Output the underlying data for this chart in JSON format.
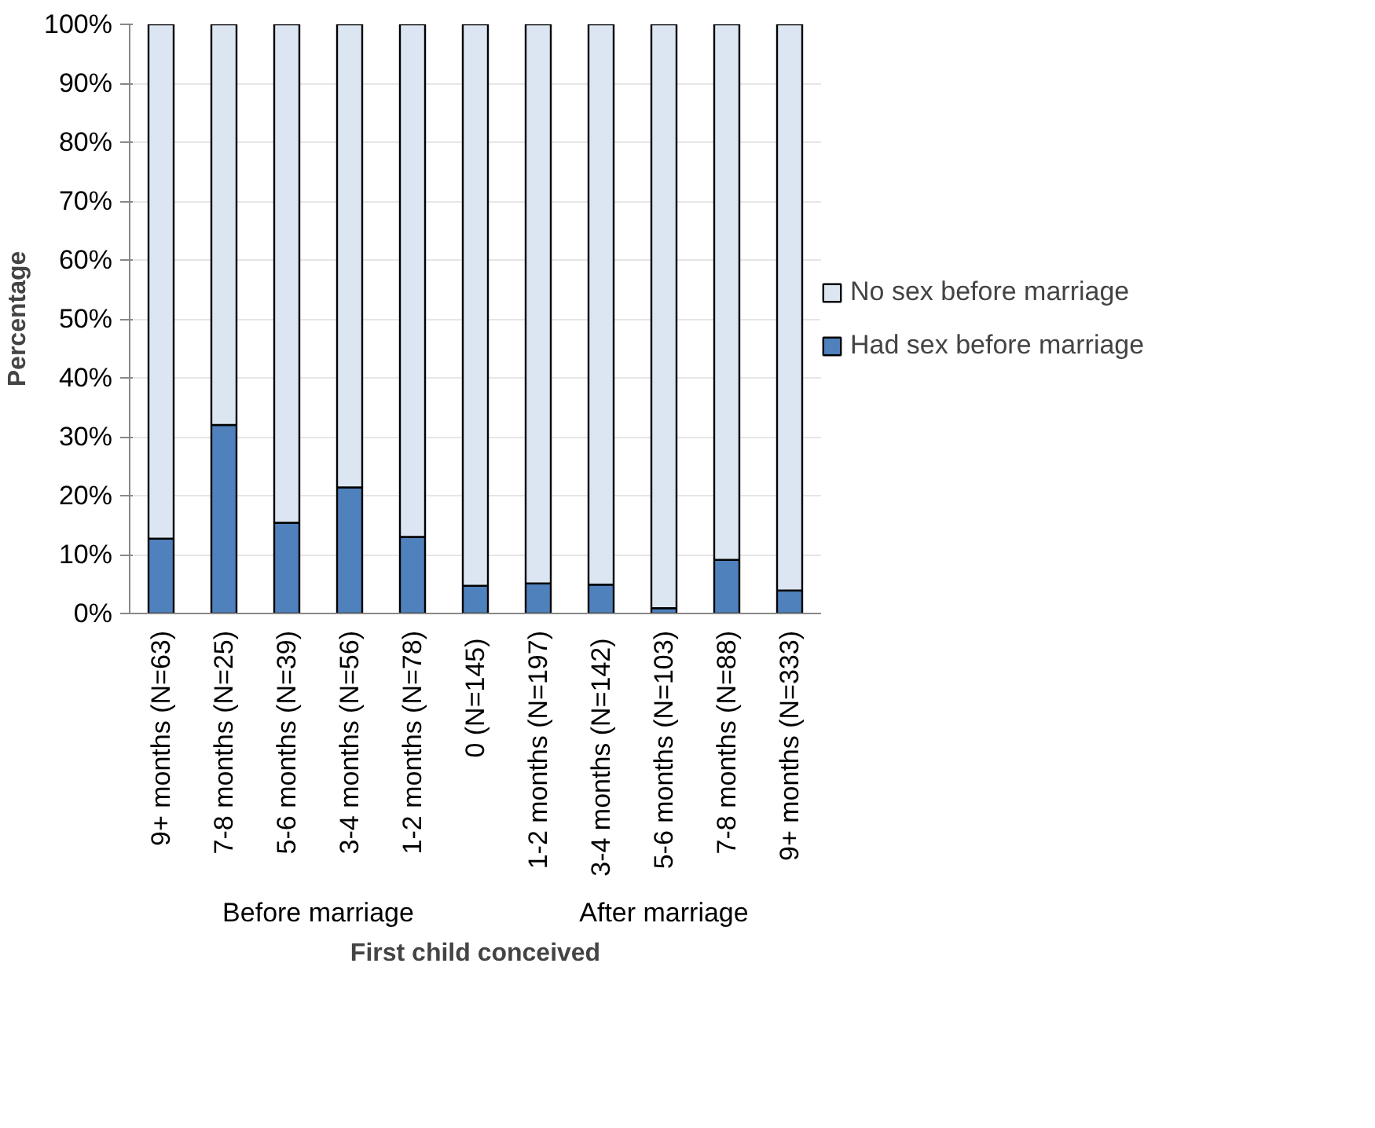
{
  "chart_data": {
    "type": "bar",
    "stacked": true,
    "xlabel": "First child conceived",
    "ylabel": "Percentage",
    "categories": [
      "9+ months (N=63)",
      "7-8 months (N=25)",
      "5-6 months (N=39)",
      "3-4 months (N=56)",
      "1-2 months (N=78)",
      "0  (N=145)",
      "1-2 months (N=197)",
      "3-4 months  (N=142)",
      "5-6 months (N=103)",
      "7-8 months (N=88)",
      "9+ months (N=333)"
    ],
    "series": [
      {
        "name": "Had sex before marriage",
        "color": "#4f81bd",
        "values": [
          12.7,
          32,
          15.4,
          21.4,
          13,
          4.7,
          5.1,
          4.9,
          0.9,
          9.1,
          3.9
        ]
      },
      {
        "name": "No sex before marriage",
        "color": "#dce6f2",
        "values": [
          87.3,
          68,
          84.6,
          78.6,
          87,
          95.3,
          94.9,
          95.1,
          99.1,
          90.9,
          96.1
        ]
      }
    ],
    "annotations": [
      "Before marriage",
      "After marriage"
    ],
    "ylim": [
      0,
      100
    ],
    "yticks": [
      {
        "value": 0,
        "label": "0%"
      },
      {
        "value": 10,
        "label": "10%"
      },
      {
        "value": 20,
        "label": "20%"
      },
      {
        "value": 30,
        "label": "30%"
      },
      {
        "value": 40,
        "label": "40%"
      },
      {
        "value": 50,
        "label": "50%"
      },
      {
        "value": 60,
        "label": "60%"
      },
      {
        "value": 70,
        "label": "70%"
      },
      {
        "value": 80,
        "label": "80%"
      },
      {
        "value": 90,
        "label": "90%"
      },
      {
        "value": 100,
        "label": "100%"
      }
    ],
    "grid": "y",
    "legend": "right"
  }
}
